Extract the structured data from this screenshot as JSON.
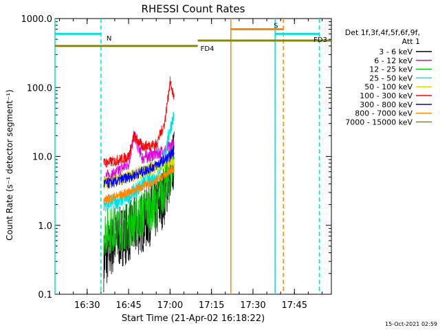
{
  "chart_data": {
    "type": "line",
    "title": "RHESSI Count Rates",
    "xlabel": "Start Time (21-Apr-02 16:18:22)",
    "ylabel": "Count Rate (s⁻¹ detector segment⁻¹)",
    "y_scale": "log",
    "ylim": [
      0.1,
      1000
    ],
    "xlim": [
      "16:18:22",
      "17:58:22"
    ],
    "x_ticks": [
      "16:30",
      "16:45",
      "17:00",
      "17:15",
      "17:30",
      "17:45"
    ],
    "y_ticks": [
      "0.1",
      "1.0",
      "10.0",
      "100.0",
      "1000.0"
    ],
    "legend_header": [
      "Det 1f,3f,4f,5f,6f,9f,",
      "Att 1"
    ],
    "legend_position": "right",
    "timestamp": "15-Oct-2021 02:59",
    "series": [
      {
        "name": "3 - 6 keV",
        "color": "#000000",
        "x": [
          "16:36:00",
          "16:40:00",
          "16:45:00",
          "16:50:00",
          "16:55:00",
          "16:58:00",
          "17:00:00",
          "17:01:30"
        ],
        "values": [
          0.3,
          0.6,
          0.8,
          1.1,
          1.7,
          2.8,
          6.0,
          9.0
        ]
      },
      {
        "name": "6 - 12 keV",
        "color": "#dd00dd",
        "x": [
          "16:36:00",
          "16:40:00",
          "16:45:00",
          "16:47:00",
          "16:50:00",
          "16:55:00",
          "16:58:00",
          "17:00:00",
          "17:01:30"
        ],
        "values": [
          5.0,
          5.5,
          8.0,
          20.0,
          9.5,
          11.0,
          12.0,
          14.0,
          15.0
        ]
      },
      {
        "name": "12 - 25 keV",
        "color": "#00cc00",
        "x": [
          "16:36:00",
          "16:40:00",
          "16:45:00",
          "16:50:00",
          "16:55:00",
          "16:58:00",
          "17:00:00",
          "17:01:30"
        ],
        "values": [
          0.8,
          0.9,
          1.0,
          1.5,
          2.0,
          3.5,
          6.0,
          10.0
        ]
      },
      {
        "name": "25 - 50 keV",
        "color": "#00e0e0",
        "x": [
          "16:36:00",
          "16:40:00",
          "16:45:00",
          "16:50:00",
          "16:55:00",
          "16:58:00",
          "17:00:00",
          "17:01:30"
        ],
        "values": [
          2.0,
          2.2,
          2.6,
          4.0,
          5.0,
          10.0,
          25.0,
          40.0
        ]
      },
      {
        "name": "50 - 100 keV",
        "color": "#dddd00",
        "x": [
          "16:36:00",
          "16:45:00",
          "16:50:00",
          "16:55:00",
          "17:01:30"
        ],
        "values": [
          4.0,
          5.0,
          6.0,
          7.0,
          9.0
        ]
      },
      {
        "name": "100 - 300 keV",
        "color": "#ff0000",
        "x": [
          "16:36:00",
          "16:40:00",
          "16:45:00",
          "16:47:00",
          "16:50:00",
          "16:55:00",
          "16:58:00",
          "17:00:00",
          "17:01:30"
        ],
        "values": [
          8.0,
          8.5,
          10.0,
          20.0,
          14.0,
          15.0,
          30.0,
          120.0,
          70.0
        ]
      },
      {
        "name": "300 - 800 keV",
        "color": "#0000ff",
        "x": [
          "16:36:00",
          "16:40:00",
          "16:45:00",
          "16:50:00",
          "16:55:00",
          "17:00:00",
          "17:01:30"
        ],
        "values": [
          4.0,
          4.2,
          5.0,
          6.0,
          7.5,
          10.0,
          13.0
        ]
      },
      {
        "name": "800 - 7000 keV",
        "color": "#ff8800",
        "x": [
          "16:36:00",
          "16:40:00",
          "16:45:00",
          "16:50:00",
          "16:55:00",
          "17:00:00",
          "17:01:30"
        ],
        "values": [
          2.3,
          2.6,
          3.0,
          3.7,
          4.5,
          6.0,
          7.0
        ]
      },
      {
        "name": "7000 - 15000 keV",
        "color": "#888800",
        "x": [],
        "values": []
      }
    ],
    "attenuator_markers": [
      {
        "label": "N",
        "color": "#00e0e0",
        "x_start": "16:18:22",
        "x_end": "16:35:00",
        "level": 600
      },
      {
        "label": "N",
        "color": "#00e0e0",
        "x_start": "17:38:00",
        "x_end": "17:54:00",
        "level": 600
      },
      {
        "label": "S",
        "color": "#ff8800",
        "x_start": "17:22:00",
        "x_end": "17:41:00",
        "level": 700
      },
      {
        "label": "FD3",
        "color": "#888800",
        "x_start": "17:10:00",
        "x_end": "17:58:22",
        "level": 480
      },
      {
        "label": "FD4",
        "color": "#888800",
        "x_start": "16:18:22",
        "x_end": "17:10:00",
        "level": 400
      }
    ],
    "vertical_lines": [
      {
        "x": "16:18:22",
        "color": "#00e0e0",
        "style": "solid"
      },
      {
        "x": "16:35:00",
        "color": "#00e0e0",
        "style": "dashed"
      },
      {
        "x": "17:22:00",
        "color": "#ff8800",
        "style": "solid"
      },
      {
        "x": "17:38:00",
        "color": "#00e0e0",
        "style": "solid"
      },
      {
        "x": "17:41:00",
        "color": "#ff8800",
        "style": "dashed"
      },
      {
        "x": "17:54:00",
        "color": "#00e0e0",
        "style": "dashed"
      }
    ]
  }
}
